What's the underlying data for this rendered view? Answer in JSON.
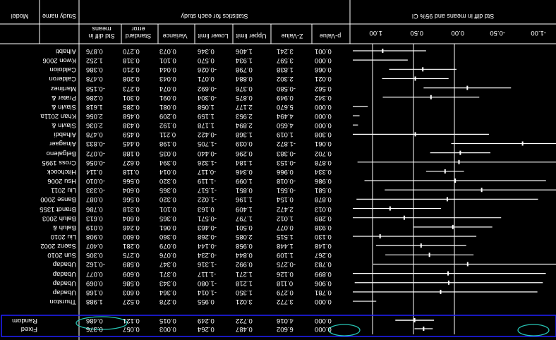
{
  "header": {
    "model": "Model",
    "study_name": "Study name",
    "stats_title": "Statistics for each study",
    "forest_title": "Std diff in means and 95% CI",
    "columns": [
      "Std diff in means",
      "Standard error",
      "Variance",
      "Lower limit",
      "Upper limit",
      "Z-Value",
      "p-Value"
    ],
    "axis_ticks": [
      "-1.00",
      "-0.50",
      "0.00",
      "0.50",
      "1.00"
    ]
  },
  "rows": [
    {
      "study": "Alhabti",
      "vals": [
        "0.876",
        "0.270",
        "0.073",
        "0.346",
        "1.406",
        "3.241",
        "0.001"
      ],
      "ci": [
        0.346,
        1.406
      ]
    },
    {
      "study": "Kwon 2006",
      "vals": [
        "1.252",
        "0.318",
        "0.101",
        "0.570",
        "1.934",
        "3.597",
        "0.000"
      ],
      "ci": [
        0.57,
        1.934
      ]
    },
    {
      "study": "Caldoion",
      "vals": [
        "0.386",
        "0.210",
        "0.044",
        "-0.026",
        "0.798",
        "1.838",
        "0.066"
      ],
      "ci": [
        -0.026,
        0.798
      ]
    },
    {
      "study": "Calderon",
      "vals": [
        "0.478",
        "0.208",
        "0.043",
        "0.071",
        "0.884",
        "2.302",
        "0.021"
      ],
      "ci": [
        0.071,
        0.884
      ]
    },
    {
      "study": "Martinez",
      "vals": [
        "-0.158",
        "0.273",
        "0.074",
        "-0.692",
        "0.376",
        "-0.580",
        "0.562"
      ],
      "ci": [
        -0.692,
        0.376
      ]
    },
    {
      "study": "Prater &",
      "vals": [
        "0.286",
        "0.301",
        "0.091",
        "-0.304",
        "0.875",
        "0.949",
        "0.342"
      ],
      "ci": [
        -0.304,
        0.875
      ]
    },
    {
      "study": "Slavin &",
      "vals": [
        "1.618",
        "0.285",
        "0.081",
        "1.058",
        "2.177",
        "5.670",
        "0.000"
      ],
      "ci": [
        1.058,
        2.177
      ]
    },
    {
      "study": "Khan 2011a",
      "vals": [
        "2.056",
        "0.458",
        "0.209",
        "1.159",
        "2.953",
        "4.494",
        "0.000"
      ],
      "ci": [
        1.159,
        2.953
      ]
    },
    {
      "study": "Slavin &",
      "vals": [
        "2.036",
        "0.438",
        "0.192",
        "1.178",
        "2.894",
        "4.650",
        "0.000"
      ],
      "ci": [
        1.178,
        2.894
      ]
    },
    {
      "study": "Alhabdi",
      "vals": [
        "0.478",
        "0.459",
        "0.211",
        "-0.422",
        "1.368",
        "1.019",
        "0.308"
      ],
      "ci": [
        -0.422,
        1.368
      ]
    },
    {
      "study": "Alnagaer",
      "vals": [
        "-0.833",
        "0.445",
        "0.198",
        "-1.705",
        "0.039",
        "-1.872",
        "0.061"
      ],
      "ci": [
        -1.705,
        0.039
      ]
    },
    {
      "study": "Belgaleno",
      "vals": [
        "-0.072",
        "0.188",
        "0.035",
        "-0.440",
        "0.296",
        "-0.383",
        "0.702"
      ],
      "ci": [
        -0.44,
        0.296
      ]
    },
    {
      "study": "Cross 1995",
      "vals": [
        "-0.056",
        "0.627",
        "0.394",
        "-1.326",
        "1.184",
        "-0.153",
        "0.878"
      ],
      "ci": [
        -1.326,
        1.184
      ]
    },
    {
      "study": "Hitchcock",
      "vals": [
        "0.114",
        "0.118",
        "0.014",
        "-0.117",
        "0.346",
        "0.966",
        "0.334"
      ],
      "ci": [
        -0.117,
        0.346
      ]
    },
    {
      "study": "Hsu 2006",
      "vals": [
        "-0.010",
        "0.566",
        "0.320",
        "-1.119",
        "1.099",
        "-0.018",
        "0.986"
      ],
      "ci": [
        -1.119,
        1.099
      ]
    },
    {
      "study": "Liu 2011",
      "vals": [
        "-0.333",
        "0.604",
        "0.365",
        "-1.517",
        "0.851",
        "-0.551",
        "0.581"
      ],
      "ci": [
        -1.517,
        0.851
      ]
    },
    {
      "study": "Banse 2000",
      "vals": [
        "0.087",
        "0.566",
        "0.320",
        "-1.022",
        "1.196",
        "0.154",
        "0.878"
      ],
      "ci": [
        -1.022,
        1.196
      ]
    },
    {
      "study": "Brandt 1355",
      "vals": [
        "0.786",
        "0.318",
        "0.101",
        "0.163",
        "1.409",
        "2.472",
        "0.013"
      ],
      "ci": [
        0.163,
        1.409
      ]
    },
    {
      "study": "Baluh 2003",
      "vals": [
        "0.613",
        "0.604",
        "0.365",
        "-0.571",
        "1.797",
        "1.012",
        "0.289"
      ],
      "ci": [
        -0.571,
        1.797
      ]
    },
    {
      "study": "Baluh &",
      "vals": [
        "0.019",
        "0.246",
        "0.061",
        "-0.463",
        "0.501",
        "0.077",
        "0.938"
      ],
      "ci": [
        -0.463,
        0.501
      ]
    },
    {
      "study": "Liu 2010",
      "vals": [
        "0.908",
        "0.600",
        "0.360",
        "-0.268",
        "2.085",
        "1.515",
        "0.130"
      ],
      "ci": [
        -0.268,
        2.085
      ]
    },
    {
      "study": "Saenz 2002",
      "vals": [
        "0.407",
        "0.281",
        "0.079",
        "-0.144",
        "0.958",
        "1.448",
        "0.148"
      ],
      "ci": [
        -0.144,
        0.958
      ]
    },
    {
      "study": "Sun 2010",
      "vals": [
        "0.305",
        "0.275",
        "0.076",
        "-0.234",
        "0.844",
        "1.109",
        "0.267"
      ],
      "ci": [
        -0.234,
        0.844
      ]
    },
    {
      "study": "Ubadap",
      "vals": [
        "-0.162",
        "0.589",
        "0.347",
        "-1.316",
        "0.992",
        "-0.275",
        "0.783"
      ],
      "ci": [
        -1.316,
        0.992
      ]
    },
    {
      "study": "Ubadap",
      "vals": [
        "0.077",
        "0.609",
        "0.371",
        "-1.117",
        "1.271",
        "0.126",
        "0.899"
      ],
      "ci": [
        -1.117,
        1.271
      ]
    },
    {
      "study": "Ubadap",
      "vals": [
        "0.069",
        "0.586",
        "0.343",
        "-1.080",
        "1.218",
        "0.118",
        "0.906"
      ],
      "ci": [
        -1.08,
        1.218
      ]
    },
    {
      "study": "Ubadap",
      "vals": [
        "0.168",
        "0.603",
        "0.364",
        "-1.014",
        "1.350",
        "0.279",
        "0.781"
      ],
      "ci": [
        -1.014,
        1.35
      ]
    },
    {
      "study": "Thurston",
      "vals": [
        "1.988",
        "0.527",
        "0.278",
        "0.955",
        "3.021",
        "3.772",
        "0.000"
      ],
      "ci": [
        0.955,
        3.021
      ]
    }
  ],
  "summary": [
    {
      "model": "Fixed",
      "vals": [
        "0.376",
        "0.057",
        "0.003",
        "0.264",
        "0.487",
        "6.602",
        "0.000"
      ],
      "ci": [
        0.264,
        0.487
      ]
    },
    {
      "model": "Random",
      "vals": [
        "0.486",
        "0.121",
        "0.015",
        "0.249",
        "0.722",
        "4.016",
        "0.000"
      ],
      "ci": [
        0.249,
        0.722
      ]
    }
  ],
  "highlight_color": "#2020ff",
  "marker_color": "#27c4b4"
}
